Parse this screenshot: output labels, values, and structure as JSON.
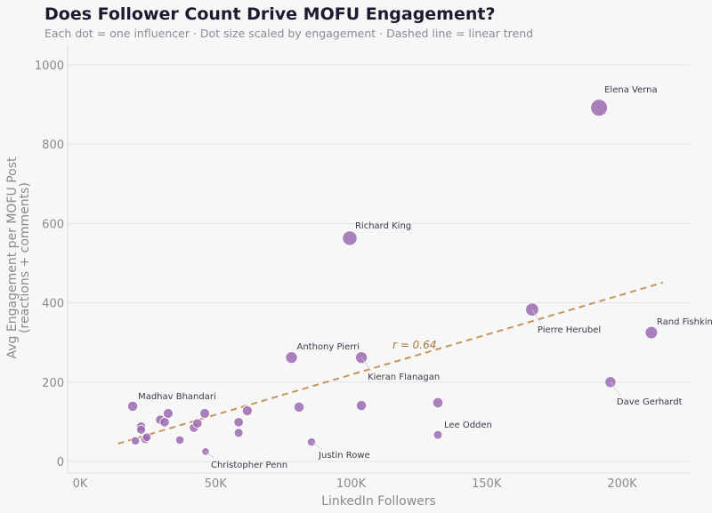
{
  "title": "Does Follower Count Drive MOFU Engagement?",
  "subtitle": "Each dot = one influencer  ·  Dot size scaled by engagement  ·  Dashed line = linear trend",
  "chart_data": {
    "type": "scatter",
    "xlabel": "LinkedIn Followers",
    "ylabel": "Avg Engagement per MOFU Post\n(reactions + comments)",
    "xlim": [
      -5000,
      225000
    ],
    "ylim": [
      -30,
      1050
    ],
    "x_ticks": [
      {
        "v": 0,
        "label": "0K"
      },
      {
        "v": 50000,
        "label": "50K"
      },
      {
        "v": 100000,
        "label": "100K"
      },
      {
        "v": 150000,
        "label": "150K"
      },
      {
        "v": 200000,
        "label": "200K"
      }
    ],
    "y_ticks": [
      {
        "v": 0,
        "label": "0"
      },
      {
        "v": 200,
        "label": "200"
      },
      {
        "v": 400,
        "label": "400"
      },
      {
        "v": 600,
        "label": "600"
      },
      {
        "v": 800,
        "label": "800"
      },
      {
        "v": 1000,
        "label": "1000"
      }
    ],
    "grid": true,
    "point_color": "#9b6bb0",
    "trend_color": "#c4945a",
    "trend": {
      "x": [
        14000,
        215000
      ],
      "y": [
        45,
        451
      ],
      "label": "r = 0.64"
    },
    "points": [
      {
        "x": 19400,
        "y": 139,
        "name": "Madhav Bhandari"
      },
      {
        "x": 22500,
        "y": 88
      },
      {
        "x": 22500,
        "y": 80
      },
      {
        "x": 20400,
        "y": 52
      },
      {
        "x": 24000,
        "y": 56
      },
      {
        "x": 24600,
        "y": 61
      },
      {
        "x": 29600,
        "y": 105
      },
      {
        "x": 31200,
        "y": 99
      },
      {
        "x": 32500,
        "y": 121
      },
      {
        "x": 36800,
        "y": 54
      },
      {
        "x": 42000,
        "y": 85
      },
      {
        "x": 43300,
        "y": 96
      },
      {
        "x": 46000,
        "y": 121
      },
      {
        "x": 46300,
        "y": 25,
        "name": "Christopher Penn"
      },
      {
        "x": 58500,
        "y": 99
      },
      {
        "x": 58500,
        "y": 72
      },
      {
        "x": 61700,
        "y": 128
      },
      {
        "x": 80800,
        "y": 137
      },
      {
        "x": 78000,
        "y": 262,
        "name": "Anthony Pierri"
      },
      {
        "x": 85400,
        "y": 49,
        "name": "Justin Rowe"
      },
      {
        "x": 99500,
        "y": 563,
        "name": "Richard King"
      },
      {
        "x": 103800,
        "y": 262,
        "name": "Kieran Flanagan"
      },
      {
        "x": 103800,
        "y": 141
      },
      {
        "x": 132000,
        "y": 148
      },
      {
        "x": 132000,
        "y": 67,
        "name": "Lee Odden"
      },
      {
        "x": 166800,
        "y": 383,
        "name": "Pierre Herubel"
      },
      {
        "x": 191500,
        "y": 892,
        "name": "Elena Verna"
      },
      {
        "x": 195700,
        "y": 200,
        "name": "Dave Gerhardt"
      },
      {
        "x": 210800,
        "y": 325,
        "name": "Rand Fishkin"
      }
    ]
  }
}
